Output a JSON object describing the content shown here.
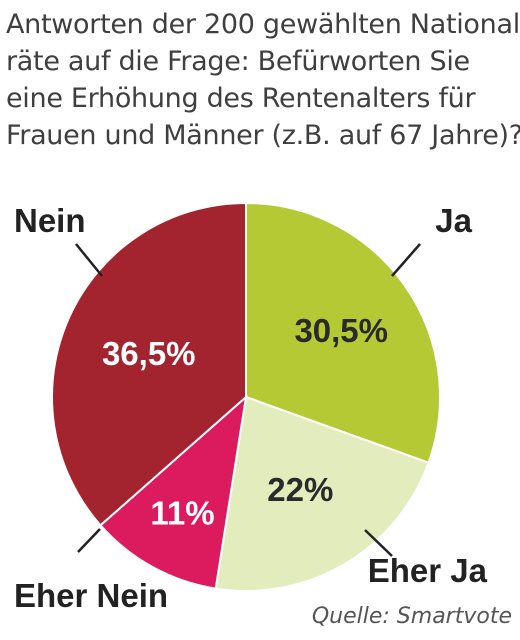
{
  "title_lines": [
    "Antworten der 200 gewählten National-",
    "räte auf die Frage: Befürworten Sie",
    "eine Erhöhung des Rentenalters für",
    "Frauen und Männer (z.B. auf 67 Jahre)?"
  ],
  "source": "Quelle: Smartvote",
  "chart_data": {
    "type": "pie",
    "title": "Antworten der 200 gewählten Nationalräte auf die Frage: Befürworten Sie eine Erhöhung des Rentenalters für Frauen und Männer (z.B. auf 67 Jahre)?",
    "slices": [
      {
        "label": "Ja",
        "value": 30.5,
        "value_label": "30,5%",
        "color": "#b5c934",
        "value_text_color": "#2a2a2a"
      },
      {
        "label": "Eher Ja",
        "value": 22,
        "value_label": "22%",
        "color": "#e3ecbd",
        "value_text_color": "#2a2a2a"
      },
      {
        "label": "Eher Nein",
        "value": 11,
        "value_label": "11%",
        "color": "#dc1b5e",
        "value_text_color": "#ffffff"
      },
      {
        "label": "Nein",
        "value": 36.5,
        "value_label": "36,5%",
        "color": "#a3242f",
        "value_text_color": "#ffffff"
      }
    ],
    "start_angle": "12 o'clock",
    "direction": "clockwise",
    "legend": "none (callout labels)"
  }
}
